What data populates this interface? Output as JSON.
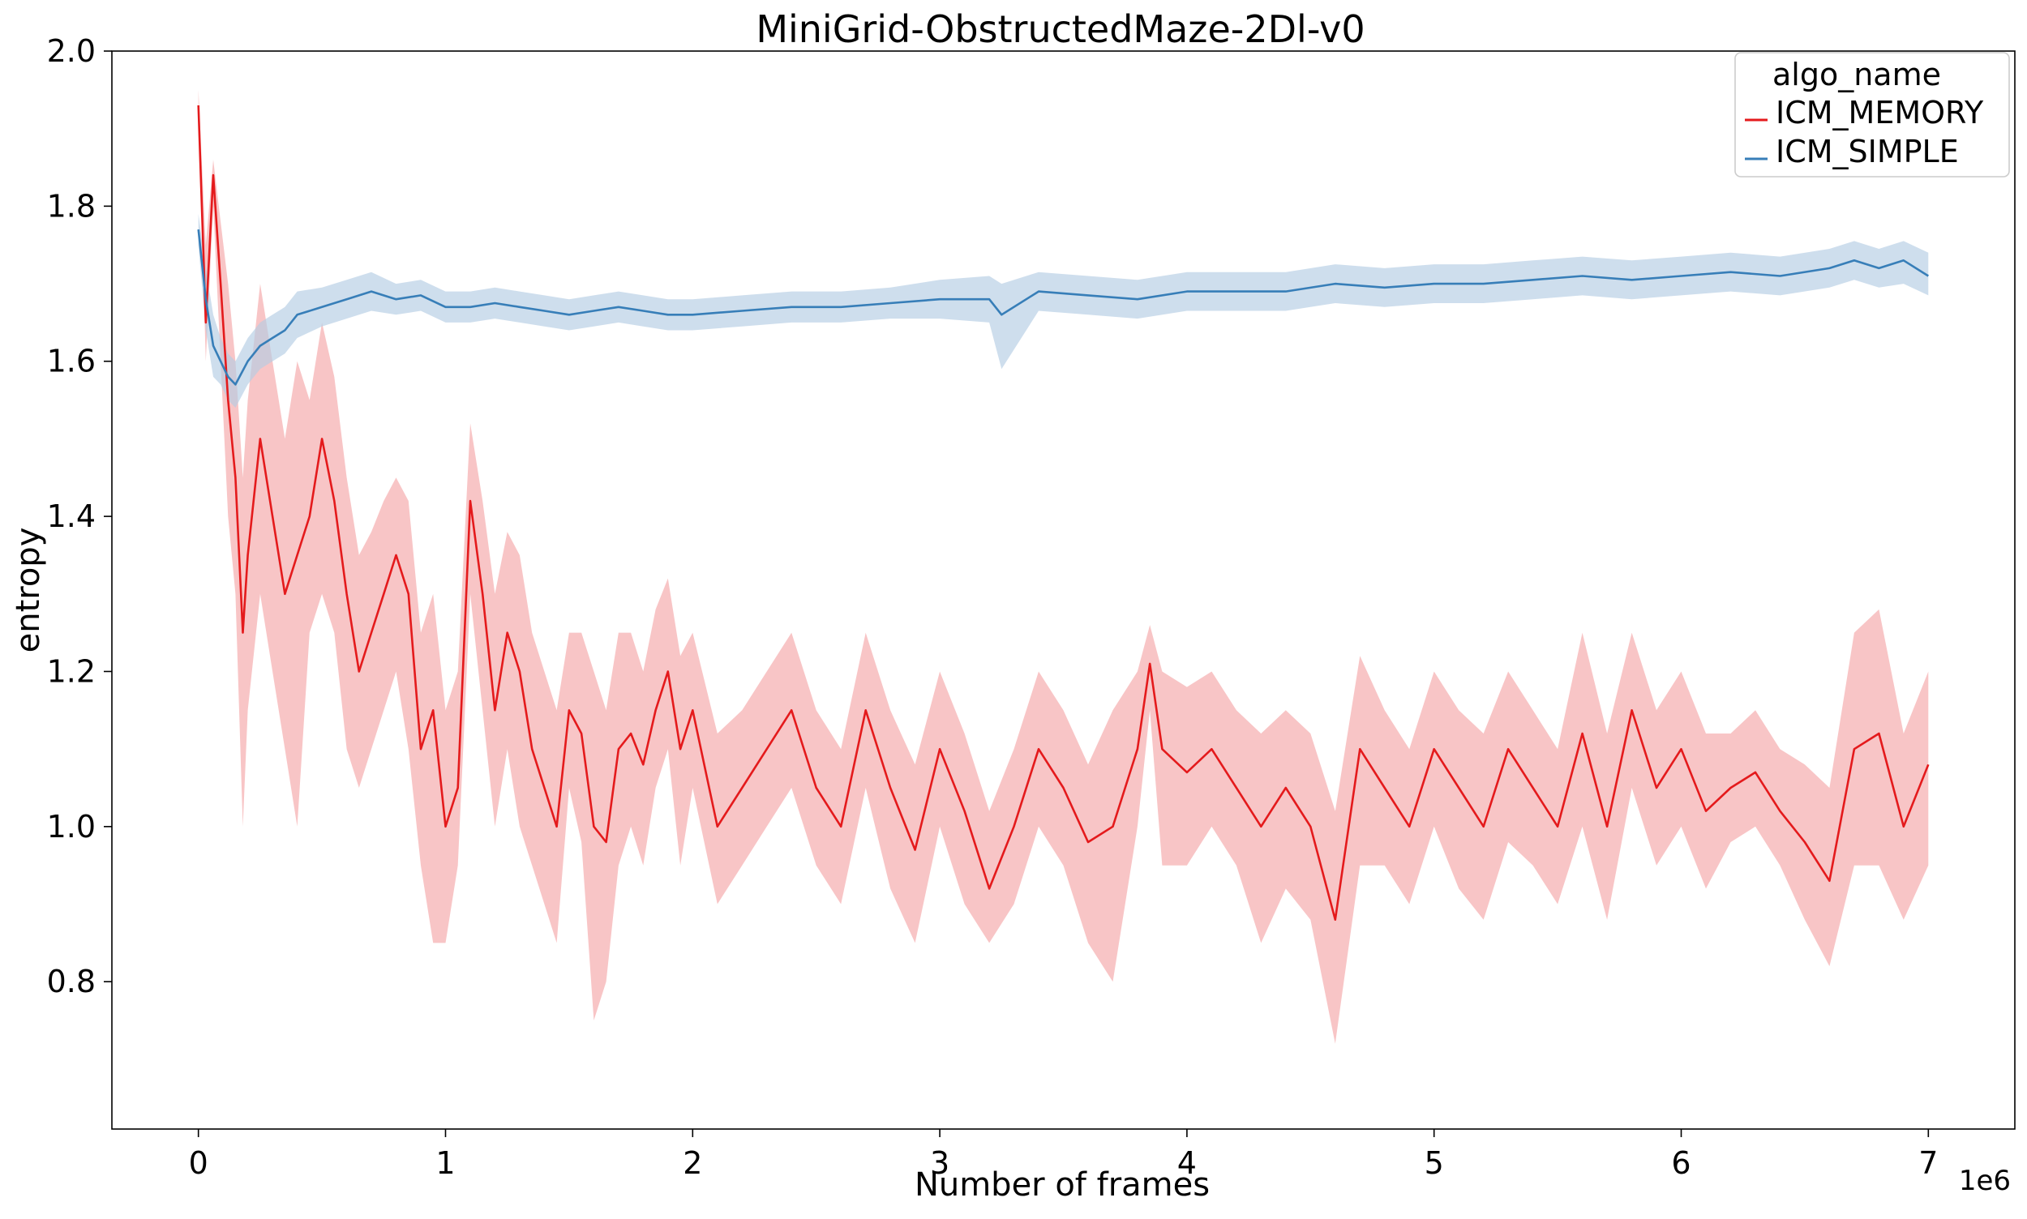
{
  "chart_data": {
    "type": "line",
    "title": "MiniGrid-ObstructedMaze-2Dl-v0",
    "xlabel": "Number of frames",
    "ylabel": "entropy",
    "x_offset_label": "1e6",
    "xlim": [
      -0.35,
      7.35
    ],
    "ylim": [
      0.61,
      2.0
    ],
    "x_ticks": [
      0,
      1,
      2,
      3,
      4,
      5,
      6,
      7
    ],
    "x_tick_labels": [
      "0",
      "1",
      "2",
      "3",
      "4",
      "5",
      "6",
      "7"
    ],
    "y_ticks": [
      0.8,
      1.0,
      1.2,
      1.4,
      1.6,
      1.8,
      2.0
    ],
    "y_tick_labels": [
      "0.8",
      "1.0",
      "1.2",
      "1.4",
      "1.6",
      "1.8",
      "2.0"
    ],
    "grid": false,
    "legend": {
      "title": "algo_name",
      "position": "top-right"
    },
    "series": [
      {
        "name": "ICM_MEMORY",
        "color": "#e41a1c",
        "band_color": "#f4a6a7",
        "x": [
          0.0,
          0.03,
          0.06,
          0.09,
          0.12,
          0.15,
          0.18,
          0.2,
          0.25,
          0.3,
          0.35,
          0.4,
          0.45,
          0.5,
          0.55,
          0.6,
          0.65,
          0.7,
          0.75,
          0.8,
          0.85,
          0.9,
          0.95,
          1.0,
          1.05,
          1.1,
          1.15,
          1.2,
          1.25,
          1.3,
          1.35,
          1.4,
          1.45,
          1.5,
          1.55,
          1.6,
          1.65,
          1.7,
          1.75,
          1.8,
          1.85,
          1.9,
          1.95,
          2.0,
          2.1,
          2.2,
          2.3,
          2.4,
          2.5,
          2.6,
          2.7,
          2.8,
          2.9,
          3.0,
          3.1,
          3.2,
          3.3,
          3.4,
          3.5,
          3.6,
          3.7,
          3.8,
          3.85,
          3.9,
          4.0,
          4.1,
          4.2,
          4.3,
          4.4,
          4.5,
          4.6,
          4.7,
          4.8,
          4.9,
          5.0,
          5.1,
          5.2,
          5.3,
          5.4,
          5.5,
          5.6,
          5.7,
          5.8,
          5.9,
          6.0,
          6.1,
          6.2,
          6.3,
          6.4,
          6.5,
          6.6,
          6.7,
          6.8,
          6.9,
          7.0
        ],
        "y": [
          1.93,
          1.65,
          1.84,
          1.7,
          1.55,
          1.45,
          1.25,
          1.35,
          1.5,
          1.4,
          1.3,
          1.35,
          1.4,
          1.5,
          1.42,
          1.3,
          1.2,
          1.25,
          1.3,
          1.35,
          1.3,
          1.1,
          1.15,
          1.0,
          1.05,
          1.42,
          1.3,
          1.15,
          1.25,
          1.2,
          1.1,
          1.05,
          1.0,
          1.15,
          1.12,
          1.0,
          0.98,
          1.1,
          1.12,
          1.08,
          1.15,
          1.2,
          1.1,
          1.15,
          1.0,
          1.05,
          1.1,
          1.15,
          1.05,
          1.0,
          1.15,
          1.05,
          0.97,
          1.1,
          1.02,
          0.92,
          1.0,
          1.1,
          1.05,
          0.98,
          1.0,
          1.1,
          1.21,
          1.1,
          1.07,
          1.1,
          1.05,
          1.0,
          1.05,
          1.0,
          0.88,
          1.1,
          1.05,
          1.0,
          1.1,
          1.05,
          1.0,
          1.1,
          1.05,
          1.0,
          1.12,
          1.0,
          1.15,
          1.05,
          1.1,
          1.02,
          1.05,
          1.07,
          1.02,
          0.98,
          0.93,
          1.1,
          1.12,
          1.0,
          1.08
        ],
        "lower": [
          1.93,
          1.6,
          1.8,
          1.6,
          1.4,
          1.3,
          1.0,
          1.15,
          1.3,
          1.2,
          1.1,
          1.0,
          1.25,
          1.3,
          1.25,
          1.1,
          1.05,
          1.1,
          1.15,
          1.2,
          1.1,
          0.95,
          0.85,
          0.85,
          0.95,
          1.3,
          1.15,
          1.0,
          1.1,
          1.0,
          0.95,
          0.9,
          0.85,
          1.05,
          0.98,
          0.75,
          0.8,
          0.95,
          1.0,
          0.95,
          1.05,
          1.1,
          0.95,
          1.05,
          0.9,
          0.95,
          1.0,
          1.05,
          0.95,
          0.9,
          1.05,
          0.92,
          0.85,
          1.0,
          0.9,
          0.85,
          0.9,
          1.0,
          0.95,
          0.85,
          0.8,
          1.0,
          1.15,
          0.95,
          0.95,
          1.0,
          0.95,
          0.85,
          0.92,
          0.88,
          0.72,
          0.95,
          0.95,
          0.9,
          1.0,
          0.92,
          0.88,
          0.98,
          0.95,
          0.9,
          1.0,
          0.88,
          1.05,
          0.95,
          1.0,
          0.92,
          0.98,
          1.0,
          0.95,
          0.88,
          0.82,
          0.95,
          0.95,
          0.88,
          0.95
        ],
        "upper": [
          1.95,
          1.75,
          1.86,
          1.78,
          1.7,
          1.6,
          1.45,
          1.55,
          1.7,
          1.6,
          1.5,
          1.6,
          1.55,
          1.65,
          1.58,
          1.45,
          1.35,
          1.38,
          1.42,
          1.45,
          1.42,
          1.25,
          1.3,
          1.15,
          1.2,
          1.52,
          1.42,
          1.3,
          1.38,
          1.35,
          1.25,
          1.2,
          1.15,
          1.25,
          1.25,
          1.2,
          1.15,
          1.25,
          1.25,
          1.2,
          1.28,
          1.32,
          1.22,
          1.25,
          1.12,
          1.15,
          1.2,
          1.25,
          1.15,
          1.1,
          1.25,
          1.15,
          1.08,
          1.2,
          1.12,
          1.02,
          1.1,
          1.2,
          1.15,
          1.08,
          1.15,
          1.2,
          1.26,
          1.2,
          1.18,
          1.2,
          1.15,
          1.12,
          1.15,
          1.12,
          1.02,
          1.22,
          1.15,
          1.1,
          1.2,
          1.15,
          1.12,
          1.2,
          1.15,
          1.1,
          1.25,
          1.12,
          1.25,
          1.15,
          1.2,
          1.12,
          1.12,
          1.15,
          1.1,
          1.08,
          1.05,
          1.25,
          1.28,
          1.12,
          1.2
        ]
      },
      {
        "name": "ICM_SIMPLE",
        "color": "#377eb8",
        "band_color": "#b3cde3",
        "x": [
          0.0,
          0.03,
          0.06,
          0.09,
          0.12,
          0.15,
          0.2,
          0.25,
          0.3,
          0.35,
          0.4,
          0.5,
          0.6,
          0.7,
          0.8,
          0.9,
          1.0,
          1.1,
          1.2,
          1.3,
          1.4,
          1.5,
          1.6,
          1.7,
          1.8,
          1.9,
          2.0,
          2.2,
          2.4,
          2.6,
          2.8,
          3.0,
          3.2,
          3.25,
          3.4,
          3.6,
          3.8,
          4.0,
          4.2,
          4.4,
          4.6,
          4.8,
          5.0,
          5.2,
          5.4,
          5.6,
          5.8,
          6.0,
          6.2,
          6.4,
          6.6,
          6.7,
          6.8,
          6.9,
          7.0
        ],
        "y": [
          1.77,
          1.68,
          1.62,
          1.6,
          1.58,
          1.57,
          1.6,
          1.62,
          1.63,
          1.64,
          1.66,
          1.67,
          1.68,
          1.69,
          1.68,
          1.685,
          1.67,
          1.67,
          1.675,
          1.67,
          1.665,
          1.66,
          1.665,
          1.67,
          1.665,
          1.66,
          1.66,
          1.665,
          1.67,
          1.67,
          1.675,
          1.68,
          1.68,
          1.66,
          1.69,
          1.685,
          1.68,
          1.69,
          1.69,
          1.69,
          1.7,
          1.695,
          1.7,
          1.7,
          1.705,
          1.71,
          1.705,
          1.71,
          1.715,
          1.71,
          1.72,
          1.73,
          1.72,
          1.73,
          1.71
        ],
        "lower": [
          1.75,
          1.64,
          1.58,
          1.57,
          1.55,
          1.54,
          1.57,
          1.59,
          1.6,
          1.61,
          1.63,
          1.645,
          1.655,
          1.665,
          1.66,
          1.665,
          1.65,
          1.65,
          1.655,
          1.65,
          1.645,
          1.64,
          1.645,
          1.65,
          1.645,
          1.64,
          1.64,
          1.645,
          1.65,
          1.65,
          1.655,
          1.655,
          1.65,
          1.59,
          1.665,
          1.66,
          1.655,
          1.665,
          1.665,
          1.665,
          1.675,
          1.67,
          1.675,
          1.675,
          1.68,
          1.685,
          1.68,
          1.685,
          1.69,
          1.685,
          1.695,
          1.705,
          1.695,
          1.7,
          1.685
        ],
        "upper": [
          1.79,
          1.72,
          1.66,
          1.63,
          1.61,
          1.6,
          1.63,
          1.65,
          1.66,
          1.67,
          1.69,
          1.695,
          1.705,
          1.715,
          1.7,
          1.705,
          1.69,
          1.69,
          1.695,
          1.69,
          1.685,
          1.68,
          1.685,
          1.69,
          1.685,
          1.68,
          1.68,
          1.685,
          1.69,
          1.69,
          1.695,
          1.705,
          1.71,
          1.7,
          1.715,
          1.71,
          1.705,
          1.715,
          1.715,
          1.715,
          1.725,
          1.72,
          1.725,
          1.725,
          1.73,
          1.735,
          1.73,
          1.735,
          1.74,
          1.735,
          1.745,
          1.755,
          1.745,
          1.755,
          1.74
        ]
      }
    ]
  }
}
